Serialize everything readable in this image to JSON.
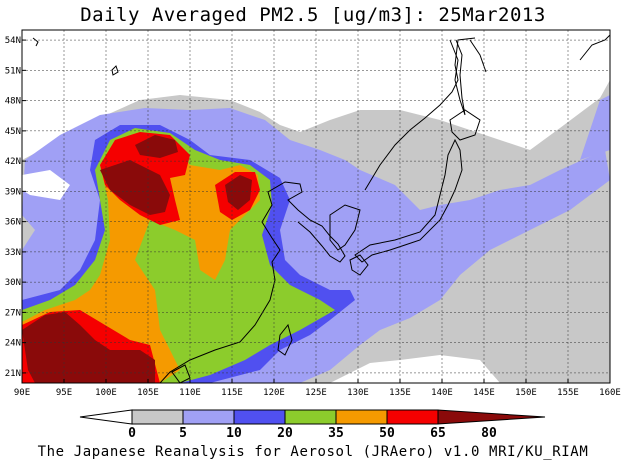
{
  "title": "Daily Averaged PM2.5 [ug/m3]: 25Mar2013",
  "credit": "The Japanese Reanalysis for Aerosol (JRAero) v1.0 MRI/KU_RIAM",
  "map": {
    "lon_range": [
      90,
      160
    ],
    "lat_range": [
      20,
      55
    ],
    "lon_ticks": [
      "90E",
      "95E",
      "100E",
      "105E",
      "110E",
      "115E",
      "120E",
      "125E",
      "130E",
      "135E",
      "140E",
      "145E",
      "150E",
      "155E",
      "160E"
    ],
    "lat_ticks": [
      "54N",
      "51N",
      "48N",
      "45N",
      "42N",
      "39N",
      "36N",
      "33N",
      "30N",
      "27N",
      "24N",
      "21N"
    ],
    "gridlines": true
  },
  "legend": {
    "levels": [
      "0",
      "5",
      "10",
      "20",
      "35",
      "50",
      "65",
      "80"
    ],
    "colors": [
      "#ffffff",
      "#c8c8c8",
      "#a0a0f5",
      "#5050f0",
      "#8ccc2c",
      "#f59a00",
      "#f50000",
      "#8a0a0a"
    ]
  }
}
